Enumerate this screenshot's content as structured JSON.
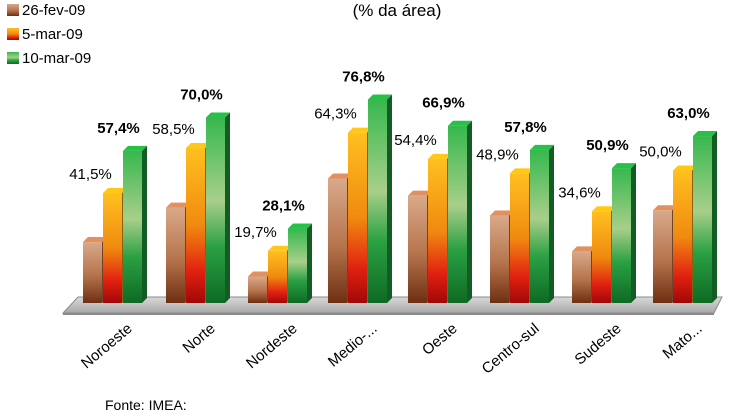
{
  "chart_data": {
    "type": "bar",
    "title": "(% da área)",
    "source": "Fonte: IMEA;",
    "categories": [
      "Noroeste",
      "Norte",
      "Nordeste",
      "Medio-...",
      "Oeste",
      "Centro-sul",
      "Sudeste",
      "Mato..."
    ],
    "series": [
      {
        "name": "26-fev-09",
        "values": [
          23.0,
          36.0,
          10.0,
          47.0,
          40.5,
          33.0,
          19.5,
          35.0
        ],
        "color": "#b5734c"
      },
      {
        "name": "5-mar-09",
        "values": [
          41.5,
          58.5,
          19.7,
          64.3,
          54.4,
          48.9,
          34.6,
          50.0
        ],
        "color": "#e8a010"
      },
      {
        "name": "10-mar-09",
        "values": [
          57.4,
          70.0,
          28.1,
          76.8,
          66.9,
          57.8,
          50.9,
          63.0
        ],
        "color": "#1f9a3a"
      }
    ],
    "data_labels": {
      "5-mar-09": [
        "41,5%",
        "58,5%",
        "19,7%",
        "64,3%",
        "54,4%",
        "48,9%",
        "34,6%",
        "50,0%"
      ],
      "10-mar-09": [
        "57,4%",
        "70,0%",
        "28,1%",
        "76,8%",
        "66,9%",
        "57,8%",
        "50,9%",
        "63,0%"
      ]
    },
    "legend_position": "top-left",
    "grid": false
  }
}
